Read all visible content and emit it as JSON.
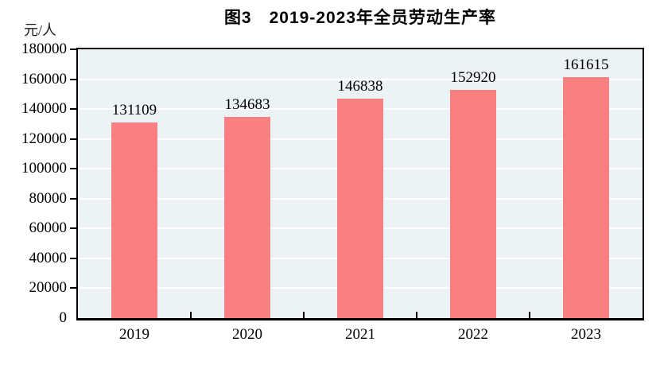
{
  "chart_data": {
    "type": "bar",
    "title": "图3　2019-2023年全员劳动生产率",
    "unit_label": "元/人",
    "categories": [
      "2019",
      "2020",
      "2021",
      "2022",
      "2023"
    ],
    "values": [
      131109,
      134683,
      146838,
      152920,
      161615
    ],
    "data_labels": [
      "131109",
      "134683",
      "146838",
      "152920",
      "161615"
    ],
    "ylabel": "元/人",
    "xlabel": "",
    "ylim": [
      0,
      180000
    ],
    "ytick_step": 20000,
    "ytick_labels": [
      "0",
      "20000",
      "40000",
      "60000",
      "80000",
      "100000",
      "120000",
      "140000",
      "160000",
      "180000"
    ],
    "grid": "horizontal gridlines on",
    "legend": "none",
    "colors": {
      "bar": "#F88080",
      "plot_background": "#EBF3F6",
      "gridline": "#FFFFFF",
      "axis": "#000000",
      "text": "#000000"
    }
  }
}
